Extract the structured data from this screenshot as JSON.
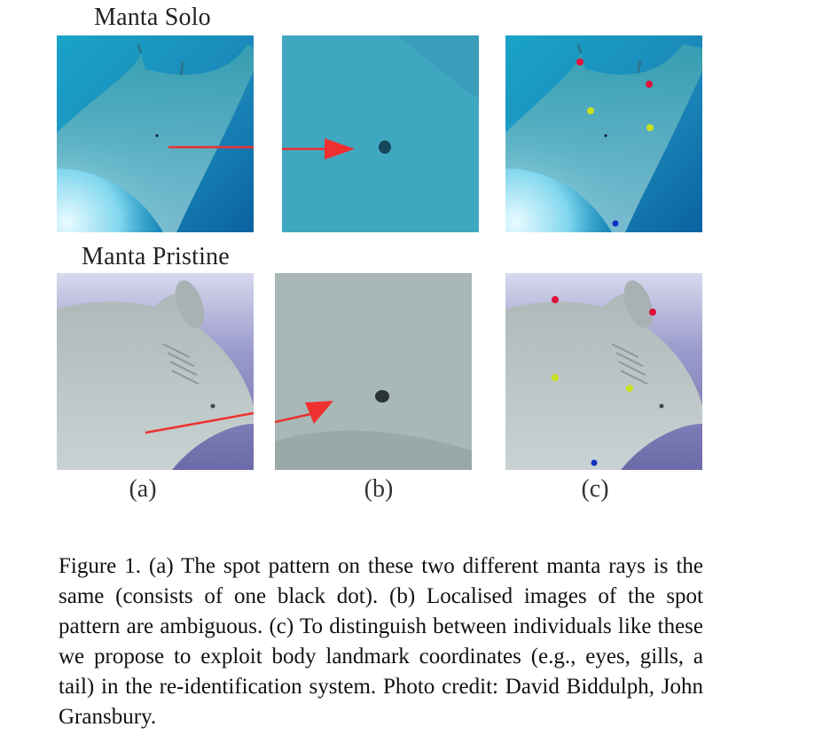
{
  "figure": {
    "rows": [
      {
        "label": "Manta Solo"
      },
      {
        "label": "Manta Pristine"
      }
    ],
    "columns": [
      {
        "label": "(a)"
      },
      {
        "label": "(b)"
      },
      {
        "label": "(c)"
      }
    ],
    "landmark_colors": {
      "eyes": "#e0103a",
      "gills": "#c8e020",
      "tail": "#1030c0"
    },
    "arrow_color": "#ee3030",
    "caption": "Figure 1. (a) The spot pattern on these two different manta rays is the same (consists of one black dot). (b) Localised images of the spot pattern are ambiguous. (c) To distinguish between individuals like these we propose to exploit body landmark coordinates (e.g., eyes, gills, a tail) in the re-identification system.  Photo credit: David Biddulph, John Gransbury."
  }
}
